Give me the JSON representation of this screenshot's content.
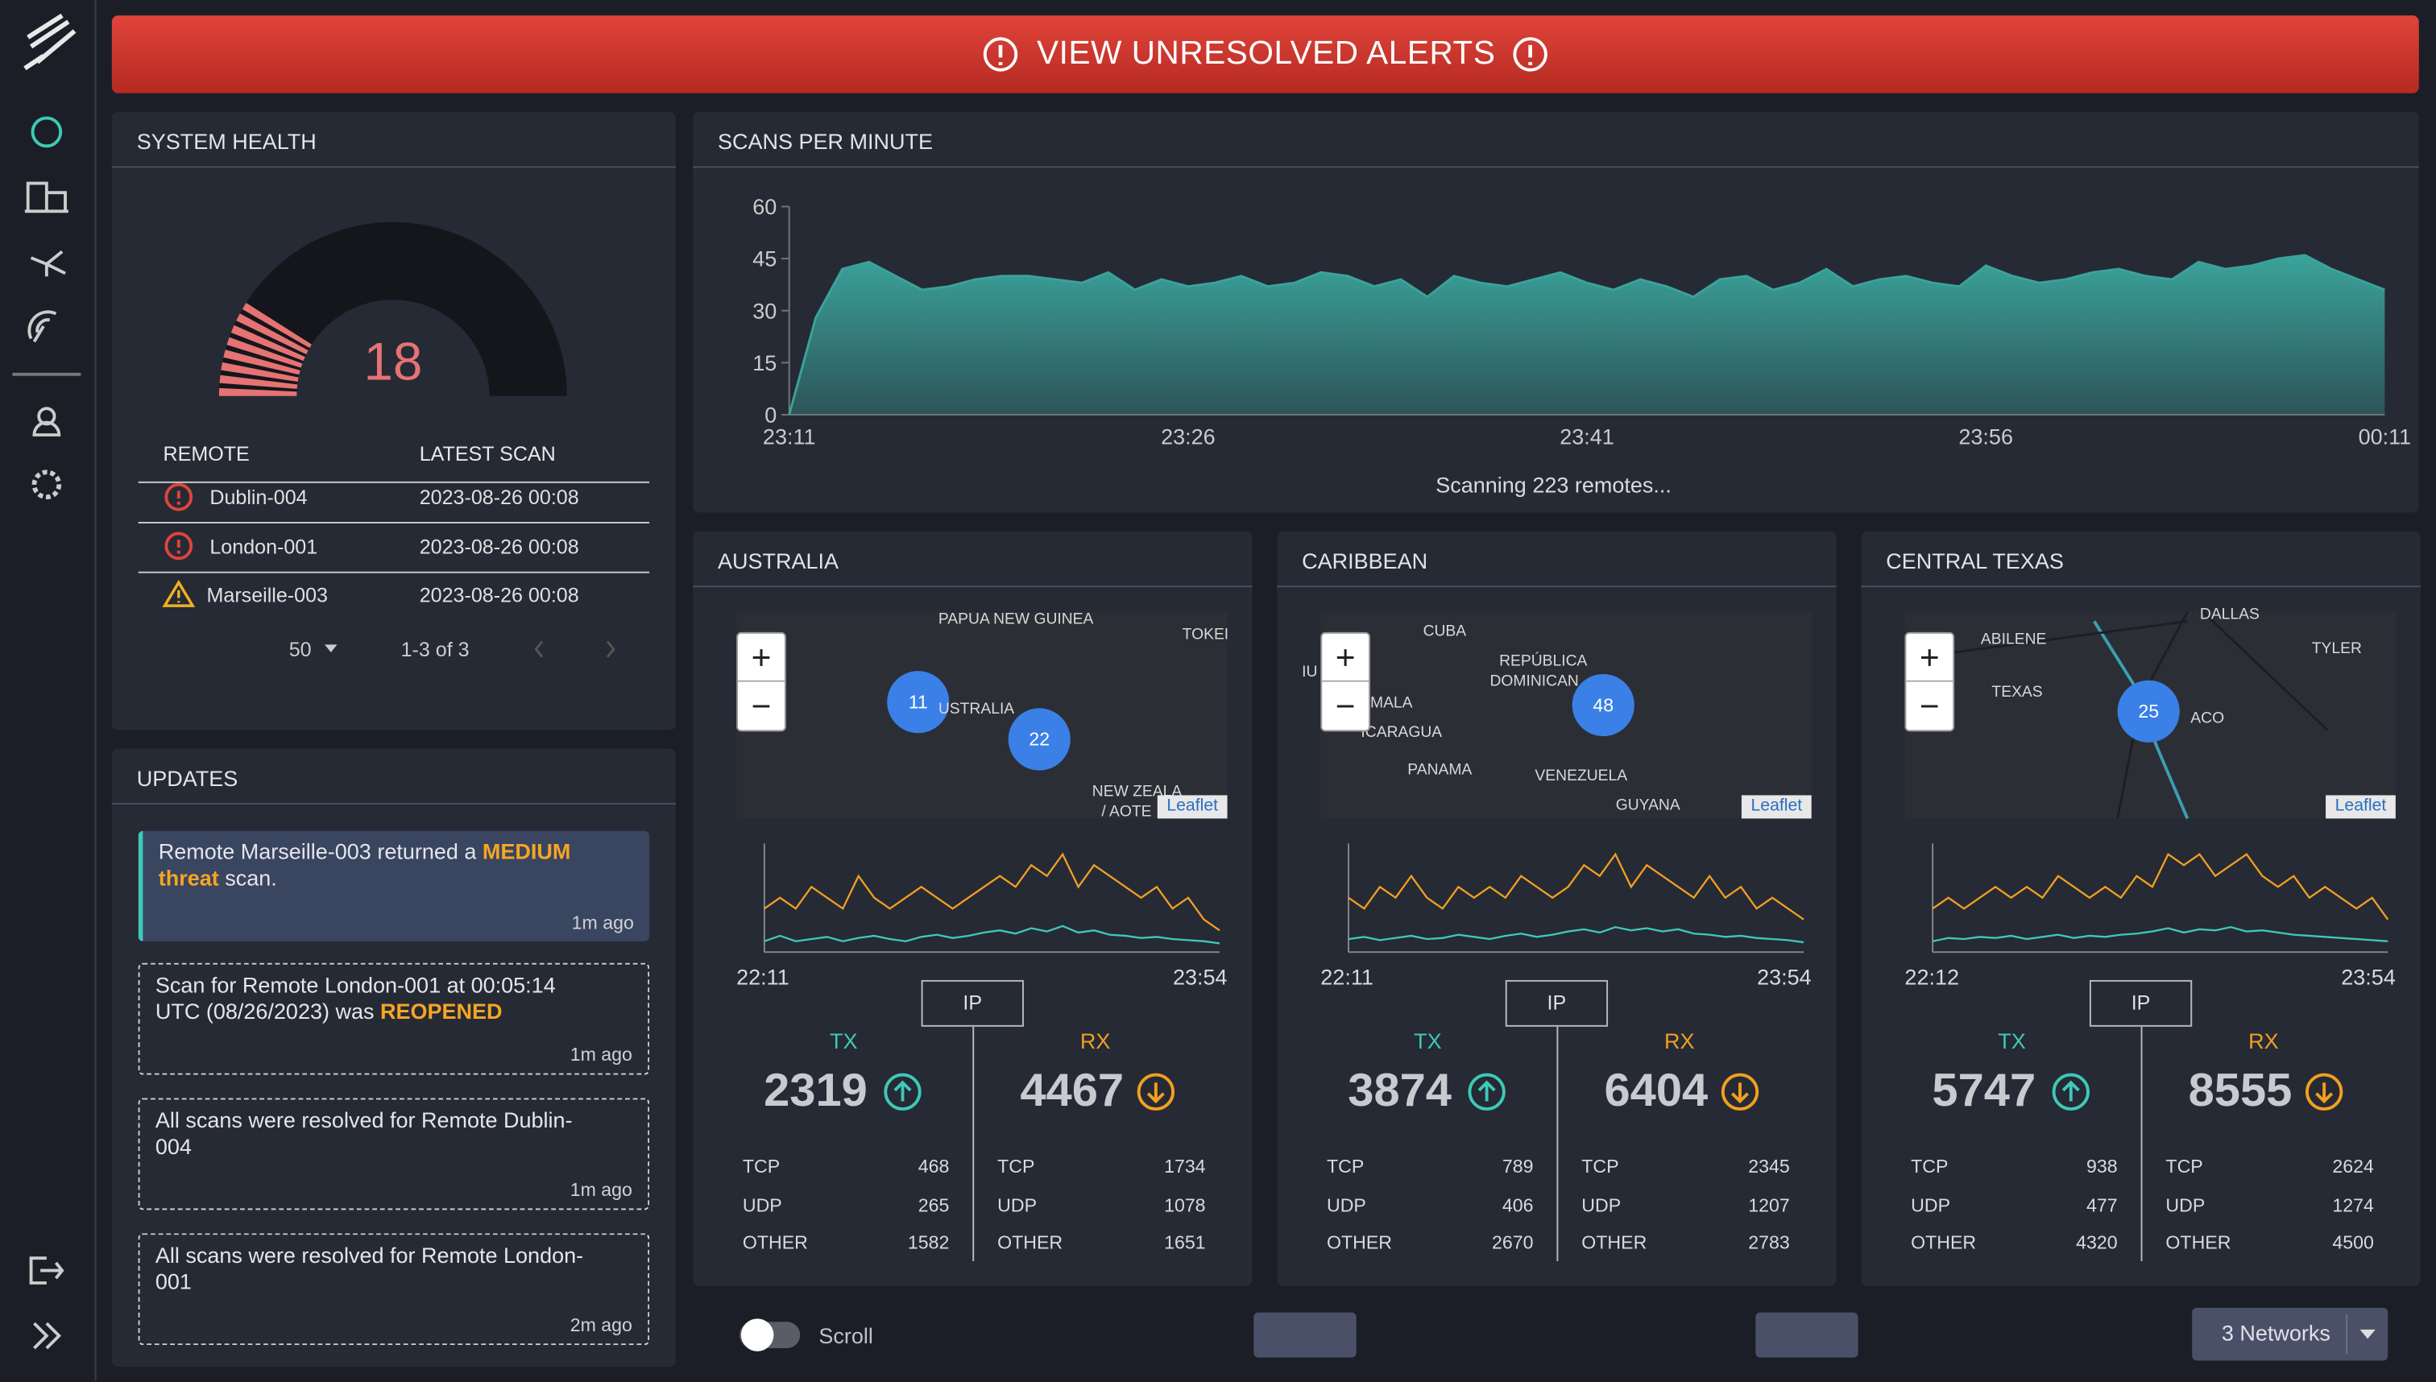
{
  "alert_banner": "VIEW UNRESOLVED ALERTS",
  "system_health": {
    "title": "SYSTEM HEALTH",
    "gauge": {
      "type": "gauge",
      "value": 18,
      "range": [
        0,
        100
      ],
      "color": "#e57373"
    },
    "columns": [
      "REMOTE",
      "LATEST SCAN"
    ],
    "rows": [
      {
        "level": "error",
        "remote": "Dublin-004",
        "scan": "2023-08-26 00:08"
      },
      {
        "level": "error",
        "remote": "London-001",
        "scan": "2023-08-26 00:08"
      },
      {
        "level": "warning",
        "remote": "Marseille-003",
        "scan": "2023-08-26 00:08"
      }
    ],
    "page_size": "50",
    "page_info": "1-3 of 3"
  },
  "updates": {
    "title": "UPDATES",
    "items": [
      {
        "highlight": true,
        "before": "Remote Marseille-003 returned a ",
        "emphasis": "MEDIUM threat",
        "after": " scan.",
        "time": "1m ago"
      },
      {
        "highlight": false,
        "before": "Scan for Remote London-001 at 00:05:14 UTC (08/26/2023) was ",
        "emphasis": "REOPENED",
        "time": "1m ago"
      },
      {
        "highlight": false,
        "before": "All scans were resolved for Remote Dublin-004",
        "time": "1m ago"
      },
      {
        "highlight": false,
        "before": "All scans were resolved for Remote London-001",
        "time": "2m ago"
      }
    ]
  },
  "scans": {
    "title": "SCANS PER MINUTE",
    "chart_data": {
      "type": "area",
      "color": "#3aa39b",
      "categories": [
        "23:11",
        null,
        null,
        null,
        null,
        null,
        null,
        null,
        null,
        null,
        null,
        null,
        null,
        null,
        null,
        "23:26",
        null,
        null,
        null,
        null,
        null,
        null,
        null,
        null,
        null,
        null,
        null,
        null,
        null,
        null,
        "23:41",
        null,
        null,
        null,
        null,
        null,
        null,
        null,
        null,
        null,
        null,
        null,
        null,
        null,
        null,
        "23:56",
        null,
        null,
        null,
        null,
        null,
        null,
        null,
        null,
        null,
        null,
        null,
        null,
        null,
        null,
        "00:11"
      ],
      "values": [
        0,
        28,
        42,
        44,
        40,
        36,
        37,
        39,
        40,
        40,
        39,
        38,
        41,
        36,
        39,
        37,
        38,
        40,
        37,
        38,
        41,
        40,
        37,
        39,
        34,
        40,
        38,
        37,
        39,
        41,
        38,
        36,
        39,
        37,
        34,
        39,
        40,
        36,
        38,
        42,
        37,
        39,
        40,
        38,
        37,
        43,
        40,
        38,
        39,
        41,
        42,
        40,
        39,
        44,
        42,
        43,
        45,
        46,
        42,
        39,
        36
      ],
      "ylim": [
        0,
        60
      ],
      "yticks": [
        0,
        15,
        30,
        45,
        60
      ]
    },
    "status": "Scanning 223 remotes..."
  },
  "map_controls": [
    "+",
    "−"
  ],
  "regions": [
    {
      "title": "AUSTRALIA",
      "map": {
        "labels": [
          "PAPUA NEW GUINEA",
          "TOKEI",
          "USTRALIA",
          "NEW ZEALA",
          "/ AOTE"
        ],
        "clusters": [
          11,
          22
        ],
        "attribution": "Leaflet"
      },
      "chart_data": {
        "type": "line",
        "ylim": [
          0,
          10
        ],
        "categories": [
          "22:11",
          null,
          null,
          null,
          null,
          null,
          null,
          null,
          null,
          null,
          null,
          null,
          null,
          null,
          null,
          null,
          null,
          null,
          null,
          null,
          null,
          null,
          null,
          null,
          null,
          null,
          null,
          null,
          null,
          "23:54"
        ],
        "series": [
          {
            "color": "#f0a020",
            "values": [
              4,
              5,
              4,
              6,
              5,
              4,
              7,
              5,
              4,
              5,
              6,
              5,
              4,
              5,
              6,
              7,
              6,
              8,
              7,
              9,
              6,
              8,
              7,
              6,
              5,
              6,
              4,
              5,
              3,
              2
            ]
          },
          {
            "color": "#3ec9b8",
            "values": [
              1,
              1.5,
              1,
              1.2,
              1.4,
              1,
              1.3,
              1.5,
              1.2,
              1,
              1.4,
              1.6,
              1.3,
              1.5,
              1.8,
              2,
              1.7,
              2.2,
              1.9,
              2.4,
              1.8,
              2,
              1.6,
              1.5,
              1.3,
              1.4,
              1.2,
              1.1,
              1,
              0.8
            ]
          }
        ]
      },
      "ip": "IP",
      "tx": {
        "label": "TX",
        "value": 2319,
        "rows": [
          [
            "TCP",
            468
          ],
          [
            "UDP",
            265
          ],
          [
            "OTHER",
            1582
          ]
        ]
      },
      "rx": {
        "label": "RX",
        "value": 4467,
        "rows": [
          [
            "TCP",
            1734
          ],
          [
            "UDP",
            1078
          ],
          [
            "OTHER",
            1651
          ]
        ]
      }
    },
    {
      "title": "CARIBBEAN",
      "map": {
        "labels": [
          "CUBA",
          "REPÚBLICA",
          "DOMINICAN",
          "IU",
          "MALA",
          "ICARAGUA",
          "PANAMA",
          "VENEZUELA",
          "GUYANA"
        ],
        "clusters": [
          48
        ],
        "attribution": "Leaflet"
      },
      "chart_data": {
        "type": "line",
        "ylim": [
          0,
          10
        ],
        "categories": [
          "22:11",
          null,
          null,
          null,
          null,
          null,
          null,
          null,
          null,
          null,
          null,
          null,
          null,
          null,
          null,
          null,
          null,
          null,
          null,
          null,
          null,
          null,
          null,
          null,
          null,
          null,
          null,
          null,
          null,
          "23:54"
        ],
        "series": [
          {
            "color": "#f0a020",
            "values": [
              5,
              4,
              6,
              5,
              7,
              5,
              4,
              6,
              5,
              6,
              5,
              7,
              6,
              5,
              6,
              8,
              7,
              9,
              6,
              8,
              7,
              6,
              5,
              7,
              5,
              6,
              4,
              5,
              4,
              3
            ]
          },
          {
            "color": "#3ec9b8",
            "values": [
              1.2,
              1.4,
              1.1,
              1.3,
              1.5,
              1.2,
              1.3,
              1.6,
              1.4,
              1.2,
              1.5,
              1.7,
              1.4,
              1.6,
              1.9,
              2.1,
              1.8,
              2.3,
              2,
              2.2,
              1.9,
              2.1,
              1.7,
              1.6,
              1.4,
              1.5,
              1.3,
              1.2,
              1.1,
              0.9
            ]
          }
        ]
      },
      "ip": "IP",
      "tx": {
        "label": "TX",
        "value": 3874,
        "rows": [
          [
            "TCP",
            789
          ],
          [
            "UDP",
            406
          ],
          [
            "OTHER",
            2670
          ]
        ]
      },
      "rx": {
        "label": "RX",
        "value": 6404,
        "rows": [
          [
            "TCP",
            2345
          ],
          [
            "UDP",
            1207
          ],
          [
            "OTHER",
            2783
          ]
        ]
      }
    },
    {
      "title": "CENTRAL TEXAS",
      "map": {
        "labels": [
          "DALLAS",
          "ABILENE",
          "TYLER",
          "TEXAS",
          "ACO"
        ],
        "clusters": [
          25
        ],
        "attribution": "Leaflet"
      },
      "chart_data": {
        "type": "line",
        "ylim": [
          0,
          10
        ],
        "categories": [
          "22:12",
          null,
          null,
          null,
          null,
          null,
          null,
          null,
          null,
          null,
          null,
          null,
          null,
          null,
          null,
          null,
          null,
          null,
          null,
          null,
          null,
          null,
          null,
          null,
          null,
          null,
          null,
          null,
          null,
          "23:54"
        ],
        "series": [
          {
            "color": "#f0a020",
            "values": [
              4,
              5,
              4,
              5,
              6,
              5,
              6,
              5,
              7,
              6,
              5,
              6,
              5,
              7,
              6,
              9,
              8,
              9,
              7,
              8,
              9,
              7,
              6,
              7,
              5,
              6,
              5,
              4,
              5,
              3
            ]
          },
          {
            "color": "#3ec9b8",
            "values": [
              1,
              1.3,
              1.2,
              1.4,
              1.3,
              1.5,
              1.2,
              1.4,
              1.6,
              1.3,
              1.5,
              1.4,
              1.6,
              1.7,
              1.9,
              2.2,
              1.8,
              2.1,
              2,
              2.3,
              1.9,
              2,
              1.8,
              1.6,
              1.5,
              1.4,
              1.3,
              1.2,
              1.1,
              1
            ]
          }
        ]
      },
      "ip": "IP",
      "tx": {
        "label": "TX",
        "value": 5747,
        "rows": [
          [
            "TCP",
            938
          ],
          [
            "UDP",
            477
          ],
          [
            "OTHER",
            4320
          ]
        ]
      },
      "rx": {
        "label": "RX",
        "value": 8555,
        "rows": [
          [
            "TCP",
            2624
          ],
          [
            "UDP",
            1274
          ],
          [
            "OTHER",
            4500
          ]
        ]
      }
    }
  ],
  "footer": {
    "scroll": "Scroll",
    "networks": "3 Networks"
  }
}
